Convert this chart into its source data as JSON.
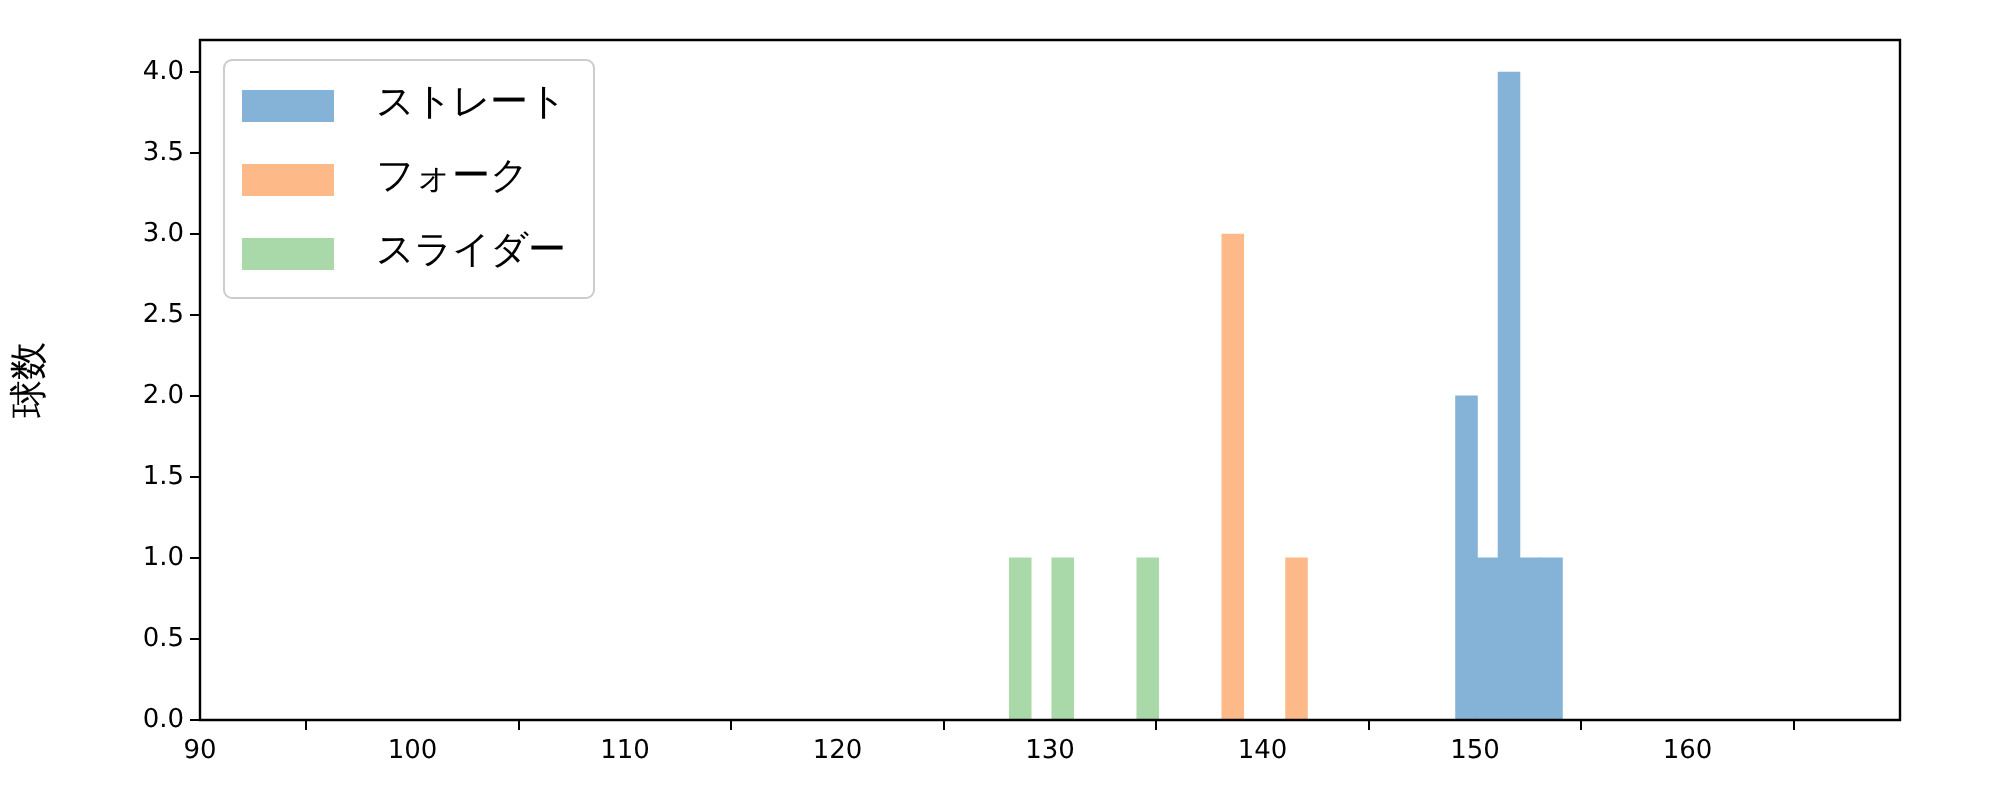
{
  "chart_data": {
    "type": "histogram",
    "ylabel": "球数",
    "bins": [
      128.1,
      129.1,
      130.1,
      131.1,
      132.1,
      133.1,
      134.1,
      135.1,
      136.1,
      137.1,
      138.1,
      139.1,
      140.1,
      141.1,
      142.1,
      143.1,
      144.1,
      145.1,
      146.1,
      147.1,
      148.1,
      149.1,
      150.1,
      151.1,
      152.1,
      153.1,
      154.1
    ],
    "series": [
      {
        "name": "ストレート",
        "color": "#84b3d7",
        "values": [
          0,
          0,
          0,
          0,
          0,
          0,
          0,
          0,
          0,
          0,
          0,
          0,
          0,
          0,
          0,
          0,
          0,
          0,
          0,
          0,
          0,
          2,
          1,
          4,
          1,
          1
        ]
      },
      {
        "name": "フォーク",
        "color": "#fdba88",
        "values": [
          0,
          0,
          0,
          0,
          0,
          0,
          0,
          0,
          0,
          0,
          3,
          0,
          0,
          1,
          0,
          0,
          0,
          0,
          0,
          0,
          0,
          0,
          0,
          0,
          0,
          0
        ]
      },
      {
        "name": "スライダー",
        "color": "#aad9a9",
        "values": [
          1,
          0,
          1,
          0,
          0,
          0,
          1,
          0,
          0,
          0,
          0,
          0,
          0,
          0,
          0,
          0,
          0,
          0,
          0,
          0,
          0,
          0,
          0,
          0,
          0,
          0
        ]
      }
    ],
    "xlim": [
      90,
      170
    ],
    "xticks": [
      90,
      100,
      110,
      120,
      130,
      140,
      150,
      160
    ],
    "ylim": [
      0,
      4.2
    ],
    "yticks": [
      {
        "value": 0,
        "label": "0.0"
      },
      {
        "value": 0.5,
        "label": "0.5"
      },
      {
        "value": 1,
        "label": "1.0"
      },
      {
        "value": 1.5,
        "label": "1.5"
      },
      {
        "value": 2,
        "label": "2.0"
      },
      {
        "value": 2.5,
        "label": "2.5"
      },
      {
        "value": 3,
        "label": "3.0"
      },
      {
        "value": 3.5,
        "label": "3.5"
      },
      {
        "value": 4,
        "label": "4.0"
      }
    ],
    "grid": false,
    "legend": "top left"
  }
}
